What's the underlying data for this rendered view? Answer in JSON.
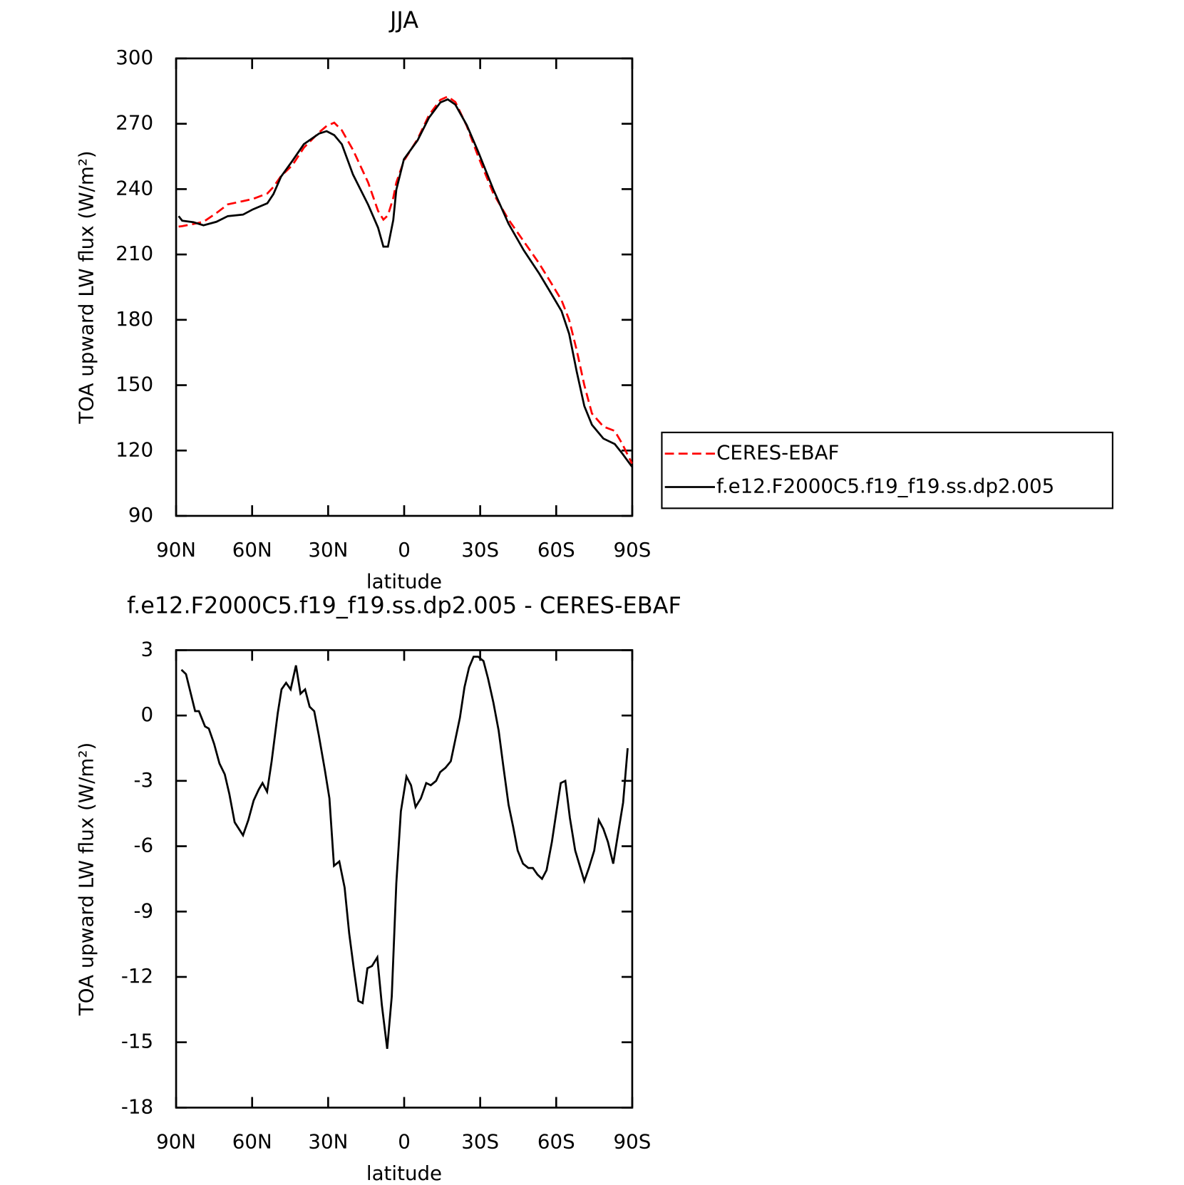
{
  "chart_data": [
    {
      "type": "line",
      "title": "JJA",
      "xlabel": "latitude",
      "ylabel": "TOA upward LW flux (W/m²)",
      "x": [
        89,
        87.6,
        83.1,
        79.2,
        74.1,
        69.6,
        63.6,
        59.7,
        54,
        51.6,
        48.6,
        44.1,
        39.6,
        33.6,
        30.6,
        27.6,
        24.6,
        20.2,
        14.2,
        10.3,
        8.2,
        6.4,
        4.3,
        3.1,
        0.1,
        -5.3,
        -9.8,
        -14.3,
        -17.2,
        -20.2,
        -24.7,
        -29.2,
        -35.2,
        -41.2,
        -47.2,
        -53.2,
        -57.7,
        -62.1,
        -65.1,
        -68.1,
        -71.1,
        -74.1,
        -78.6,
        -83.1,
        -86.1,
        -89.9
      ],
      "series": [
        {
          "name": "CERES-EBAF",
          "color": "#ff0000",
          "line_style": "dashed",
          "values": [
            222.8,
            223,
            224,
            225,
            229,
            233,
            234.5,
            235.5,
            238,
            241,
            246,
            251,
            259,
            266,
            269,
            270.5,
            267,
            258,
            243,
            230,
            226,
            228,
            236,
            243,
            253,
            263,
            274,
            281,
            282.5,
            280,
            269,
            255,
            238,
            226,
            216,
            206,
            197.5,
            189,
            180,
            166,
            150,
            137,
            131,
            129,
            123,
            114
          ]
        },
        {
          "name": "f.e12.F2000C5.f19_f19.ss.dp2.005",
          "color": "#000000",
          "line_style": "solid",
          "values": [
            227.6,
            225.5,
            224.8,
            223.4,
            225,
            227.6,
            228.3,
            230.7,
            233.5,
            237.7,
            245.7,
            253,
            260.6,
            265.5,
            266.6,
            264.8,
            260.6,
            246.7,
            232.8,
            222.3,
            213.6,
            213.6,
            225.8,
            239.7,
            253.7,
            262.4,
            272.8,
            279.8,
            281.2,
            278.8,
            269.4,
            257.2,
            239.8,
            224.1,
            211.9,
            201.4,
            192.7,
            184,
            173.6,
            156.2,
            140.4,
            131.8,
            125.5,
            123,
            118.6,
            112.6
          ]
        }
      ],
      "xlim": [
        90,
        -90
      ],
      "xticks": [
        {
          "value": 90,
          "label": "90N"
        },
        {
          "value": 60,
          "label": "60N"
        },
        {
          "value": 30,
          "label": "30N"
        },
        0,
        {
          "value": -30,
          "label": "30S"
        },
        {
          "value": -60,
          "label": "60S"
        },
        {
          "value": -90,
          "label": "90S"
        }
      ],
      "ylim": [
        90,
        300
      ],
      "yticks": [
        90,
        120,
        150,
        180,
        210,
        240,
        270,
        300
      ],
      "legend": "outside-right"
    },
    {
      "type": "line",
      "title": "f.e12.F2000C5.f19_f19.ss.dp2.005 - CERES-EBAF",
      "xlabel": "latitude",
      "ylabel": "TOA upward LW flux (W/m²)",
      "x": [
        87.9,
        86.1,
        82.5,
        81,
        78.6,
        77.1,
        75,
        72.9,
        70.8,
        69,
        66.9,
        63.6,
        61.5,
        59.4,
        57.4,
        55.9,
        54.1,
        52.3,
        49.9,
        48.4,
        46.6,
        44.8,
        42.7,
        40.9,
        39.1,
        37.3,
        35.5,
        33.7,
        31.3,
        29.5,
        27.7,
        25.6,
        23.5,
        21.7,
        19.9,
        18.1,
        16.4,
        14.5,
        12.7,
        10.6,
        8.8,
        6.7,
        4.9,
        3.1,
        1.3,
        -0.9,
        -2.7,
        -4.5,
        -6.6,
        -8.7,
        -10.5,
        -12.6,
        -14.2,
        -16.3,
        -18.4,
        -20.2,
        -22,
        -23.8,
        -25.6,
        -27.4,
        -29.2,
        -31.3,
        -33.1,
        -35.2,
        -37.3,
        -39.1,
        -41.2,
        -43,
        -44.8,
        -46.9,
        -49,
        -50.8,
        -52.6,
        -54.4,
        -56.2,
        -58.3,
        -60.1,
        -61.8,
        -63.6,
        -65.4,
        -67.5,
        -69.3,
        -71.1,
        -72.9,
        -75,
        -76.8,
        -78.6,
        -80.4,
        -82.5,
        -84.3,
        -86.4,
        -88.2
      ],
      "series": [
        {
          "color": "#000000",
          "line_style": "solid",
          "values": [
            2.1,
            1.9,
            0.2,
            0.2,
            -0.5,
            -0.6,
            -1.3,
            -2.2,
            -2.7,
            -3.6,
            -4.9,
            -5.5,
            -4.8,
            -3.9,
            -3.4,
            -3.1,
            -3.5,
            -2.1,
            0.1,
            1.2,
            1.5,
            1.2,
            2.3,
            1,
            1.2,
            0.4,
            0.2,
            -0.9,
            -2.5,
            -3.8,
            -6.9,
            -6.7,
            -7.9,
            -10,
            -11.6,
            -13.1,
            -13.2,
            -11.6,
            -11.5,
            -11.1,
            -13.3,
            -15.3,
            -12.9,
            -7.7,
            -4.4,
            -2.8,
            -3.2,
            -4.2,
            -3.8,
            -3.1,
            -3.2,
            -3,
            -2.6,
            -2.4,
            -2.1,
            -1.1,
            -0.1,
            1.3,
            2.2,
            2.7,
            2.7,
            2.5,
            1.7,
            0.6,
            -0.7,
            -2.3,
            -4.1,
            -5.1,
            -6.2,
            -6.8,
            -7,
            -7,
            -7.3,
            -7.5,
            -7.1,
            -5.8,
            -4.4,
            -3.1,
            -3,
            -4.7,
            -6.2,
            -6.9,
            -7.6,
            -7,
            -6.2,
            -4.8,
            -5.2,
            -5.8,
            -6.8,
            -5.5,
            -4,
            -1.5
          ]
        }
      ],
      "xlim": [
        90,
        -90
      ],
      "xticks": [
        {
          "value": 90,
          "label": "90N"
        },
        {
          "value": 60,
          "label": "60N"
        },
        {
          "value": 30,
          "label": "30N"
        },
        0,
        {
          "value": -30,
          "label": "30S"
        },
        {
          "value": -60,
          "label": "60S"
        },
        {
          "value": -90,
          "label": "90S"
        }
      ],
      "ylim": [
        -18,
        3
      ],
      "yticks": [
        -18,
        -15,
        -12,
        -9,
        -6,
        -3,
        0,
        3
      ]
    }
  ]
}
